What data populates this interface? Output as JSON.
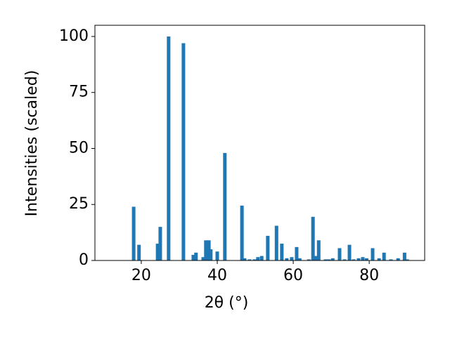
{
  "chart_data": {
    "type": "bar",
    "xlabel": "2θ (°)",
    "ylabel": "Intensities (scaled)",
    "x": [
      18.0,
      19.4,
      24.3,
      25.0,
      27.2,
      31.1,
      33.7,
      34.4,
      36.3,
      37.0,
      37.8,
      38.3,
      40.0,
      42.0,
      46.5,
      47.2,
      48.5,
      49.8,
      50.7,
      51.7,
      53.3,
      55.6,
      57.0,
      58.3,
      59.6,
      60.9,
      61.7,
      64.1,
      65.2,
      65.9,
      66.7,
      68.5,
      69.4,
      70.4,
      72.2,
      73.5,
      74.8,
      75.9,
      77.2,
      78.3,
      79.3,
      80.9,
      82.6,
      83.9,
      85.7,
      87.6,
      89.3,
      90.0
    ],
    "values": [
      24,
      7,
      7.5,
      15,
      100,
      97,
      2.5,
      3.5,
      1.5,
      9,
      9,
      5,
      4,
      48,
      24.5,
      1,
      0.5,
      0.5,
      1.5,
      2,
      11,
      15.5,
      7.5,
      1,
      1.5,
      6,
      1,
      0.5,
      19.5,
      2,
      9,
      0.5,
      0.5,
      1,
      5.5,
      0.5,
      7,
      0.5,
      1,
      1.5,
      1,
      5.5,
      1,
      3.5,
      0.5,
      1,
      3.5,
      0.5
    ],
    "color": "#1f77b4",
    "xlim": [
      7.8,
      94.6
    ],
    "ylim": [
      0,
      105
    ],
    "xticks": [
      20,
      40,
      60,
      80
    ],
    "yticks": [
      0,
      25,
      50,
      75,
      100
    ]
  }
}
